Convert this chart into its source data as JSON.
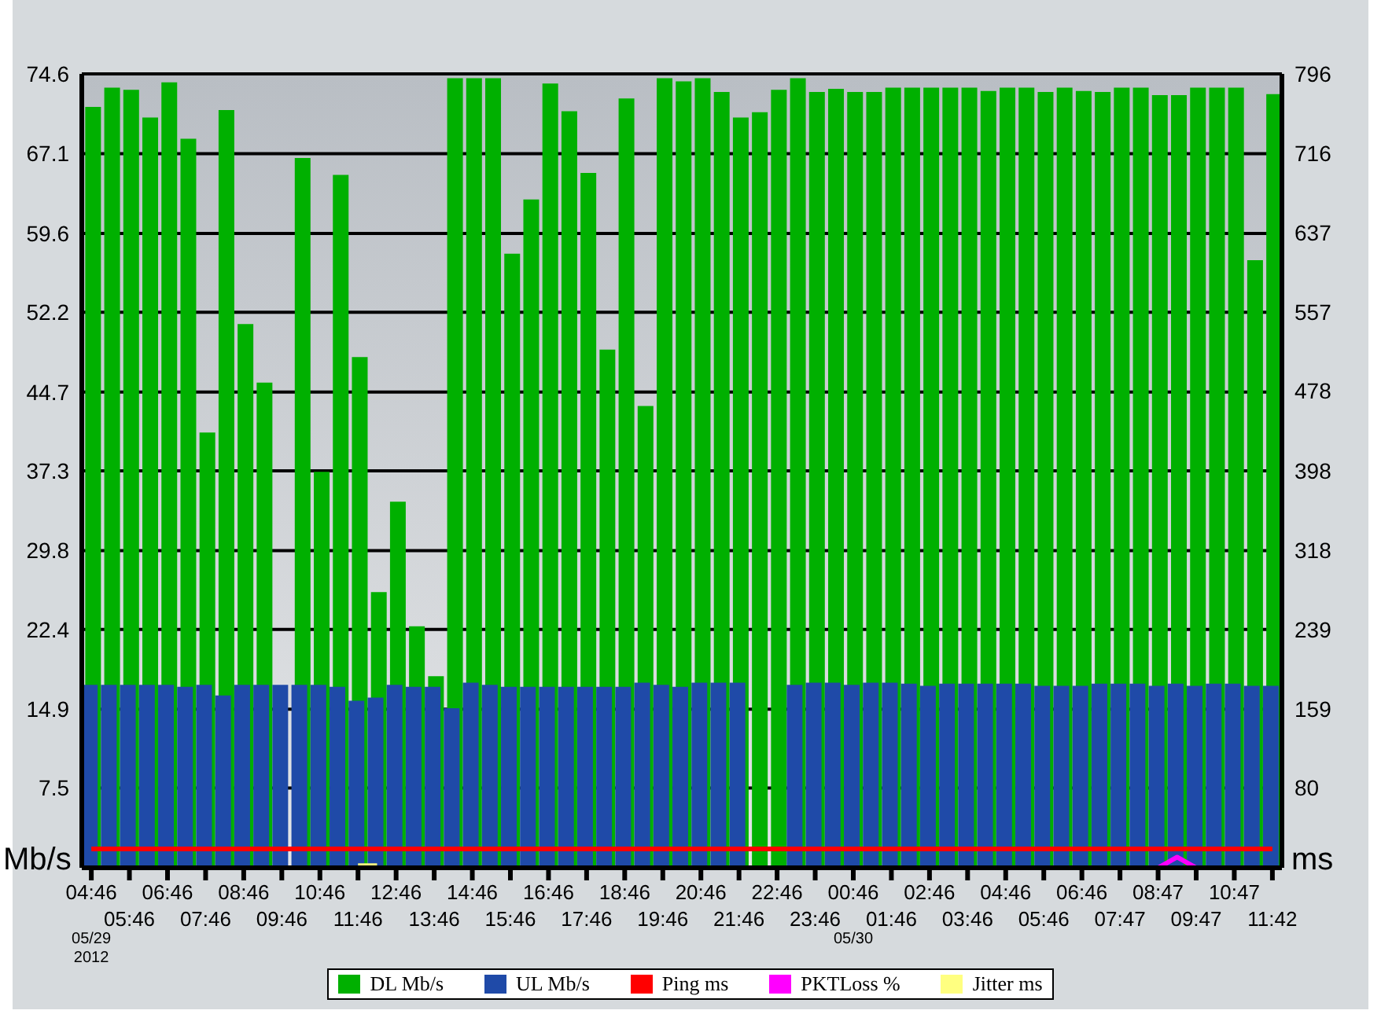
{
  "chart_data": {
    "type": "bar",
    "ylabel": "Mb/s",
    "y2label": "ms",
    "categories": [
      "04:46",
      null,
      "05:46",
      null,
      "06:46",
      null,
      "07:46",
      null,
      "08:46",
      null,
      "09:46",
      null,
      "10:46",
      null,
      "11:46",
      null,
      "12:46",
      null,
      "13:46",
      null,
      "14:46",
      null,
      "15:46",
      null,
      "16:46",
      null,
      "17:46",
      null,
      "18:46",
      null,
      "19:46",
      null,
      "20:46",
      null,
      "21:46",
      null,
      "22:46",
      null,
      "23:46",
      null,
      "00:46",
      null,
      "01:46",
      null,
      "02:46",
      null,
      "03:46",
      null,
      "04:46",
      null,
      "05:46",
      null,
      "06:46",
      null,
      "07:47",
      null,
      "08:47",
      null,
      "09:47",
      null,
      "10:47",
      null,
      "11:42"
    ],
    "series": [
      {
        "name": "DL Mb/s",
        "color": "#00b000",
        "values": [
          71.5,
          73.3,
          73.1,
          70.5,
          73.8,
          68.5,
          40.9,
          71.2,
          51.1,
          45.6,
          null,
          66.7,
          37.2,
          65.1,
          48.0,
          25.9,
          34.4,
          22.7,
          18.0,
          74.2,
          74.2,
          74.2,
          57.7,
          62.8,
          73.7,
          71.1,
          65.3,
          48.7,
          72.3,
          43.4,
          74.2,
          73.9,
          74.2,
          72.9,
          70.5,
          71.0,
          73.1,
          74.2,
          72.9,
          73.2,
          72.9,
          72.9,
          73.3,
          73.3,
          73.3,
          73.3,
          73.3,
          73.0,
          73.3,
          73.3,
          72.9,
          73.3,
          73.0,
          72.9,
          73.3,
          73.3,
          72.6,
          72.6,
          73.3,
          73.3,
          73.3,
          57.1,
          72.7
        ]
      },
      {
        "name": "UL Mb/s",
        "type": "bar",
        "color": "#1f4aa8",
        "values": [
          17.2,
          17.2,
          17.2,
          17.2,
          17.2,
          17.0,
          17.2,
          16.2,
          17.2,
          17.2,
          17.2,
          17.2,
          17.2,
          17.0,
          15.7,
          16.0,
          17.2,
          17.0,
          17.0,
          15.0,
          17.4,
          17.2,
          17.0,
          17.0,
          17.0,
          17.0,
          17.0,
          17.0,
          17.0,
          17.4,
          17.2,
          17.0,
          17.4,
          17.4,
          17.4,
          null,
          null,
          17.2,
          17.4,
          17.4,
          17.2,
          17.4,
          17.4,
          17.3,
          17.1,
          17.3,
          17.3,
          17.3,
          17.3,
          17.3,
          17.1,
          17.1,
          17.1,
          17.3,
          17.3,
          17.3,
          17.1,
          17.3,
          17.1,
          17.3,
          17.3,
          17.1,
          17.1
        ]
      },
      {
        "name": "Ping ms",
        "type": "line",
        "axis": "y2",
        "color": "#ff0000",
        "values": [
          19,
          19,
          19,
          19,
          19,
          19,
          19,
          19,
          19,
          19,
          19,
          19,
          19,
          19,
          19,
          19,
          19,
          19,
          19,
          19,
          19,
          19,
          19,
          19,
          19,
          19,
          19,
          19,
          19,
          19,
          19,
          19,
          19,
          19,
          19,
          19,
          19,
          19,
          19,
          19,
          19,
          19,
          19,
          19,
          19,
          19,
          19,
          19,
          19,
          19,
          19,
          19,
          19,
          19,
          19,
          19,
          19,
          19,
          19,
          19,
          19,
          19,
          19
        ]
      },
      {
        "name": "PKTLoss %",
        "type": "line",
        "color": "#ff00ff",
        "values": [
          null,
          null,
          null,
          null,
          null,
          null,
          null,
          null,
          null,
          null,
          null,
          null,
          null,
          null,
          null,
          null,
          null,
          null,
          null,
          null,
          null,
          null,
          null,
          null,
          null,
          null,
          null,
          null,
          null,
          null,
          null,
          null,
          null,
          null,
          null,
          null,
          null,
          null,
          null,
          null,
          null,
          null,
          null,
          null,
          null,
          null,
          null,
          null,
          null,
          null,
          null,
          null,
          null,
          null,
          null,
          null,
          0,
          1,
          0,
          null,
          null,
          null,
          null
        ]
      },
      {
        "name": "Jitter ms",
        "type": "line",
        "color": "#ffff80",
        "values": [
          null,
          null,
          null,
          null,
          null,
          null,
          null,
          null,
          null,
          null,
          null,
          null,
          null,
          null,
          0.2,
          0.2,
          null,
          null,
          null,
          null,
          null,
          null,
          null,
          null,
          null,
          null,
          null,
          null,
          null,
          null,
          null,
          null,
          null,
          null,
          null,
          null,
          null,
          null,
          null,
          null,
          null,
          null,
          null,
          null,
          null,
          null,
          null,
          null,
          null,
          null,
          null,
          null,
          null,
          null,
          null,
          null,
          null,
          null,
          null,
          null,
          null,
          null,
          null
        ]
      }
    ],
    "ylim": [
      0,
      74.6
    ],
    "yticks": [
      7.5,
      14.9,
      22.4,
      29.8,
      37.3,
      44.7,
      52.2,
      59.6,
      67.1,
      74.6
    ],
    "y2lim": [
      0,
      796
    ],
    "y2ticks": [
      80,
      159,
      239,
      318,
      398,
      478,
      557,
      637,
      716,
      796
    ],
    "grid": "y",
    "legend": "bottom",
    "marker": "none",
    "annotations": [
      "05/29",
      "2012",
      "05/30"
    ]
  }
}
